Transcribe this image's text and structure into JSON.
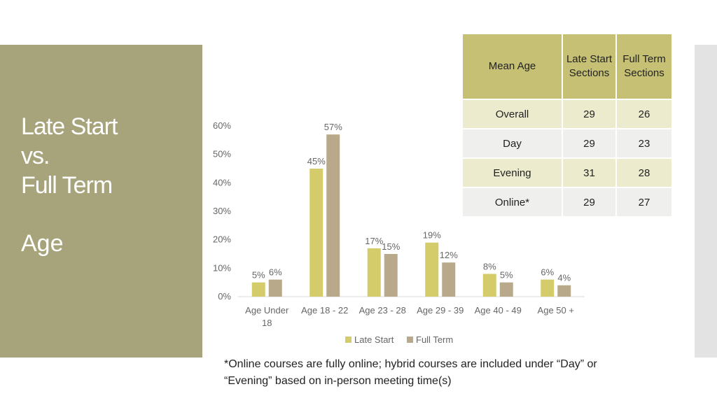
{
  "slide": {
    "title_lines": [
      "Late Start",
      "vs.",
      "Full Term"
    ],
    "subtitle": "Age",
    "footnote_line1": "*Online courses are fully online; hybrid courses are included under “Day” or",
    "footnote_line2": "“Evening” based on in-person meeting time(s)"
  },
  "table": {
    "headers": [
      "Mean Age",
      "Late Start Sections",
      "Full Term Sections"
    ],
    "rows": [
      {
        "label": "Overall",
        "late": "29",
        "full": "26"
      },
      {
        "label": "Day",
        "late": "29",
        "full": "23"
      },
      {
        "label": "Evening",
        "late": "31",
        "full": "28"
      },
      {
        "label": "Online*",
        "late": "29",
        "full": "27"
      }
    ]
  },
  "colors": {
    "late_start": "#d4cb6a",
    "full_term": "#b8a98a",
    "panel": "#a7a37a",
    "header": "#c5c073"
  },
  "chart_data": {
    "type": "bar",
    "categories": [
      "Age Under 18",
      "Age 18 - 22",
      "Age 23 - 28",
      "Age 29 - 39",
      "Age 40 - 49",
      "Age 50 +"
    ],
    "category_lines": [
      [
        "Age Under",
        "18"
      ],
      [
        "Age 18 - 22"
      ],
      [
        "Age 23 - 28"
      ],
      [
        "Age 29 - 39"
      ],
      [
        "Age 40 - 49"
      ],
      [
        "Age 50 +"
      ]
    ],
    "series": [
      {
        "name": "Late Start",
        "values": [
          5,
          45,
          17,
          19,
          8,
          6
        ],
        "labels": [
          "5%",
          "45%",
          "17%",
          "19%",
          "8%",
          "6%"
        ]
      },
      {
        "name": "Full Term",
        "values": [
          6,
          57,
          15,
          12,
          5,
          4
        ],
        "labels": [
          "6%",
          "57%",
          "15%",
          "12%",
          "5%",
          "4%"
        ]
      }
    ],
    "yticks": [
      "0%",
      "10%",
      "20%",
      "30%",
      "40%",
      "50%",
      "60%"
    ],
    "ylim": [
      0,
      60
    ],
    "grid": false,
    "legend": "bottom"
  }
}
